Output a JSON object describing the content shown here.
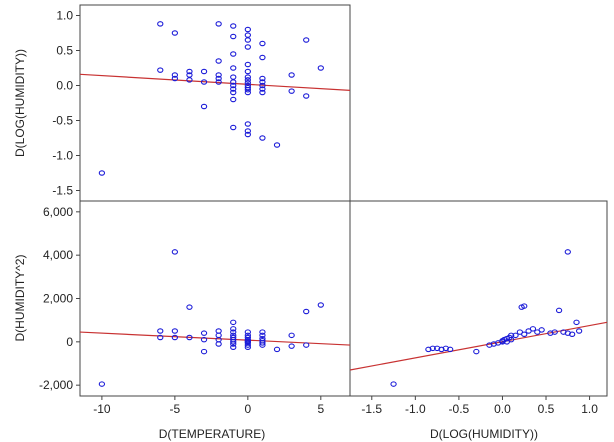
{
  "chart_data": {
    "type": "scatter",
    "panels": [
      {
        "id": "top-left",
        "x_var": "D(TEMPERATURE)",
        "y_var": "D(LOG(HUMIDITY))",
        "xlim": [
          -11.5,
          7
        ],
        "ylim": [
          -1.65,
          1.15
        ],
        "y_ticks": [
          "1.0",
          "0.5",
          "0.0",
          "-0.5",
          "-1.0",
          "-1.5"
        ],
        "y_tick_values": [
          1.0,
          0.5,
          0.0,
          -0.5,
          -1.0,
          -1.5
        ],
        "fit_line": [
          [
            -11.5,
            0.16
          ],
          [
            7,
            -0.07
          ]
        ],
        "points": [
          [
            -10,
            -1.25
          ],
          [
            -6,
            0.88
          ],
          [
            -6,
            0.22
          ],
          [
            -5,
            0.75
          ],
          [
            -5,
            0.15
          ],
          [
            -5,
            0.1
          ],
          [
            -4,
            0.2
          ],
          [
            -4,
            0.15
          ],
          [
            -4,
            0.08
          ],
          [
            -3,
            0.2
          ],
          [
            -3,
            0.05
          ],
          [
            -3,
            -0.3
          ],
          [
            -2,
            0.88
          ],
          [
            -2,
            0.35
          ],
          [
            -2,
            0.15
          ],
          [
            -2,
            0.1
          ],
          [
            -2,
            0.05
          ],
          [
            -1,
            0.85
          ],
          [
            -1,
            0.7
          ],
          [
            -1,
            0.45
          ],
          [
            -1,
            0.25
          ],
          [
            -1,
            0.12
          ],
          [
            -1,
            0.05
          ],
          [
            -1,
            0.0
          ],
          [
            -1,
            -0.05
          ],
          [
            -1,
            -0.1
          ],
          [
            -1,
            -0.2
          ],
          [
            -1,
            -0.6
          ],
          [
            0,
            0.8
          ],
          [
            0,
            0.72
          ],
          [
            0,
            0.65
          ],
          [
            0,
            0.55
          ],
          [
            0,
            0.3
          ],
          [
            0,
            0.2
          ],
          [
            0,
            0.12
          ],
          [
            0,
            0.08
          ],
          [
            0,
            0.04
          ],
          [
            0,
            0.0
          ],
          [
            0,
            -0.03
          ],
          [
            0,
            -0.06
          ],
          [
            0,
            -0.1
          ],
          [
            0,
            -0.55
          ],
          [
            0,
            -0.65
          ],
          [
            0,
            -0.7
          ],
          [
            1,
            0.6
          ],
          [
            1,
            0.4
          ],
          [
            1,
            0.1
          ],
          [
            1,
            0.05
          ],
          [
            1,
            0.0
          ],
          [
            1,
            -0.05
          ],
          [
            1,
            -0.1
          ],
          [
            1,
            -0.75
          ],
          [
            2,
            -0.85
          ],
          [
            3,
            0.15
          ],
          [
            3,
            -0.08
          ],
          [
            4,
            0.65
          ],
          [
            4,
            -0.15
          ],
          [
            5,
            0.25
          ]
        ]
      },
      {
        "id": "bottom-left",
        "x_var": "D(TEMPERATURE)",
        "y_var": "D(HUMIDITY^2)",
        "xlim": [
          -11.5,
          7
        ],
        "ylim": [
          -2500,
          6500
        ],
        "x_ticks": [
          "-10",
          "-5",
          "0",
          "5"
        ],
        "x_tick_values": [
          -10,
          -5,
          0,
          5
        ],
        "y_ticks": [
          "6,000",
          "4,000",
          "2,000",
          "0",
          "-2,000"
        ],
        "y_tick_values": [
          6000,
          4000,
          2000,
          0,
          -2000
        ],
        "fit_line": [
          [
            -11.5,
            450
          ],
          [
            7,
            -150
          ]
        ],
        "points": [
          [
            -10,
            -1950
          ],
          [
            -6,
            500
          ],
          [
            -6,
            200
          ],
          [
            -5,
            4150
          ],
          [
            -5,
            500
          ],
          [
            -5,
            200
          ],
          [
            -4,
            1600
          ],
          [
            -4,
            200
          ],
          [
            -3,
            400
          ],
          [
            -3,
            100
          ],
          [
            -3,
            -450
          ],
          [
            -2,
            500
          ],
          [
            -2,
            300
          ],
          [
            -2,
            100
          ],
          [
            -2,
            -100
          ],
          [
            -1,
            900
          ],
          [
            -1,
            600
          ],
          [
            -1,
            450
          ],
          [
            -1,
            300
          ],
          [
            -1,
            200
          ],
          [
            -1,
            100
          ],
          [
            -1,
            0
          ],
          [
            -1,
            -100
          ],
          [
            -1,
            -250
          ],
          [
            0,
            450
          ],
          [
            0,
            300
          ],
          [
            0,
            200
          ],
          [
            0,
            100
          ],
          [
            0,
            50
          ],
          [
            0,
            0
          ],
          [
            0,
            -50
          ],
          [
            0,
            -150
          ],
          [
            0,
            -250
          ],
          [
            1,
            450
          ],
          [
            1,
            300
          ],
          [
            1,
            150
          ],
          [
            1,
            50
          ],
          [
            1,
            -50
          ],
          [
            1,
            -150
          ],
          [
            2,
            -350
          ],
          [
            3,
            300
          ],
          [
            3,
            -200
          ],
          [
            4,
            1400
          ],
          [
            4,
            -150
          ],
          [
            5,
            1700
          ]
        ]
      },
      {
        "id": "bottom-right",
        "x_var": "D(LOG(HUMIDITY))",
        "y_var": "D(HUMIDITY^2)",
        "xlim": [
          -1.75,
          1.2
        ],
        "ylim": [
          -2500,
          6500
        ],
        "x_ticks": [
          "-1.5",
          "-1.0",
          "-0.5",
          "0.0",
          "0.5",
          "1.0"
        ],
        "x_tick_values": [
          -1.5,
          -1.0,
          -0.5,
          0.0,
          0.5,
          1.0
        ],
        "fit_line": [
          [
            -1.75,
            -1300
          ],
          [
            1.2,
            900
          ]
        ],
        "points": [
          [
            -1.25,
            -1950
          ],
          [
            -0.85,
            -350
          ],
          [
            -0.8,
            -300
          ],
          [
            -0.75,
            -300
          ],
          [
            -0.7,
            -350
          ],
          [
            -0.65,
            -300
          ],
          [
            -0.6,
            -350
          ],
          [
            -0.3,
            -450
          ],
          [
            -0.15,
            -150
          ],
          [
            -0.1,
            -100
          ],
          [
            -0.05,
            -50
          ],
          [
            0.0,
            0
          ],
          [
            0.0,
            50
          ],
          [
            0.02,
            100
          ],
          [
            0.05,
            150
          ],
          [
            0.05,
            0
          ],
          [
            0.08,
            200
          ],
          [
            0.1,
            100
          ],
          [
            0.1,
            300
          ],
          [
            0.15,
            300
          ],
          [
            0.2,
            450
          ],
          [
            0.22,
            1600
          ],
          [
            0.25,
            1650
          ],
          [
            0.25,
            350
          ],
          [
            0.3,
            500
          ],
          [
            0.35,
            600
          ],
          [
            0.4,
            450
          ],
          [
            0.45,
            550
          ],
          [
            0.55,
            400
          ],
          [
            0.6,
            450
          ],
          [
            0.65,
            1450
          ],
          [
            0.7,
            450
          ],
          [
            0.75,
            4150
          ],
          [
            0.75,
            400
          ],
          [
            0.8,
            350
          ],
          [
            0.85,
            900
          ],
          [
            0.88,
            500
          ]
        ]
      }
    ],
    "x_axis_labels": [
      "D(TEMPERATURE)",
      "D(LOG(HUMIDITY))"
    ],
    "y_axis_labels": [
      "D(LOG(HUMIDITY))",
      "D(HUMIDITY^2)"
    ],
    "point_color": "#1a1ad8",
    "fit_line_color": "#c83232",
    "upper_right_panel": "empty"
  }
}
